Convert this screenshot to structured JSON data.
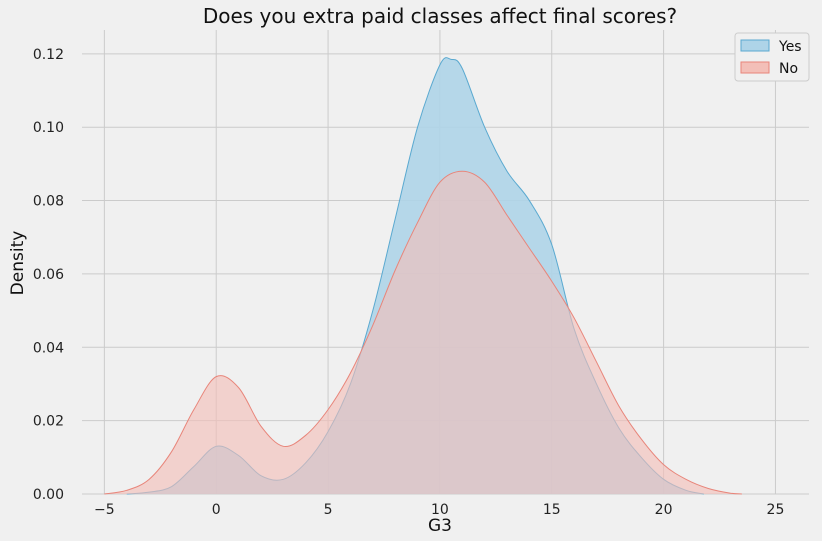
{
  "chart_data": {
    "type": "area",
    "title": "Does you extra paid classes affect final scores?",
    "xlabel": "G3",
    "ylabel": "Density",
    "xlim": [
      -6,
      26.5
    ],
    "ylim": [
      0,
      0.1265
    ],
    "xticks": [
      -5,
      0,
      5,
      10,
      15,
      20,
      25
    ],
    "yticks": [
      0,
      0.02,
      0.04,
      0.06,
      0.08,
      0.1,
      0.12
    ],
    "ytick_labels": [
      "0.00",
      "0.02",
      "0.04",
      "0.06",
      "0.08",
      "0.10",
      "0.12"
    ],
    "grid": true,
    "legend_position": "top-right",
    "series": [
      {
        "name": "Yes",
        "fill_color": "#aed4e8",
        "line_color": "#5aa9d0",
        "x": [
          -4,
          -3,
          -2,
          -1,
          0,
          1,
          2,
          3,
          4,
          5,
          6,
          7,
          8,
          9,
          10,
          10.5,
          11,
          12,
          13,
          14,
          15,
          16,
          17,
          18,
          19,
          20,
          21,
          21.8
        ],
        "y": [
          0,
          0.0005,
          0.002,
          0.0075,
          0.013,
          0.0105,
          0.005,
          0.004,
          0.0085,
          0.017,
          0.03,
          0.05,
          0.075,
          0.1,
          0.117,
          0.1185,
          0.116,
          0.1,
          0.088,
          0.08,
          0.068,
          0.045,
          0.03,
          0.018,
          0.01,
          0.004,
          0.001,
          0
        ]
      },
      {
        "name": "No",
        "fill_color": "#f3bfb8",
        "line_color": "#e8857a",
        "x": [
          -5,
          -4,
          -3,
          -2,
          -1,
          0,
          1,
          2,
          3,
          4,
          5,
          6,
          7,
          8,
          9,
          10,
          11,
          12,
          13,
          14,
          15,
          16,
          17,
          18,
          19,
          20,
          21,
          22,
          23,
          23.5
        ],
        "y": [
          0,
          0.001,
          0.004,
          0.0115,
          0.023,
          0.032,
          0.029,
          0.0185,
          0.013,
          0.016,
          0.023,
          0.033,
          0.046,
          0.061,
          0.074,
          0.085,
          0.088,
          0.085,
          0.076,
          0.067,
          0.058,
          0.048,
          0.036,
          0.024,
          0.015,
          0.008,
          0.004,
          0.0015,
          0.0002,
          0
        ]
      }
    ]
  }
}
